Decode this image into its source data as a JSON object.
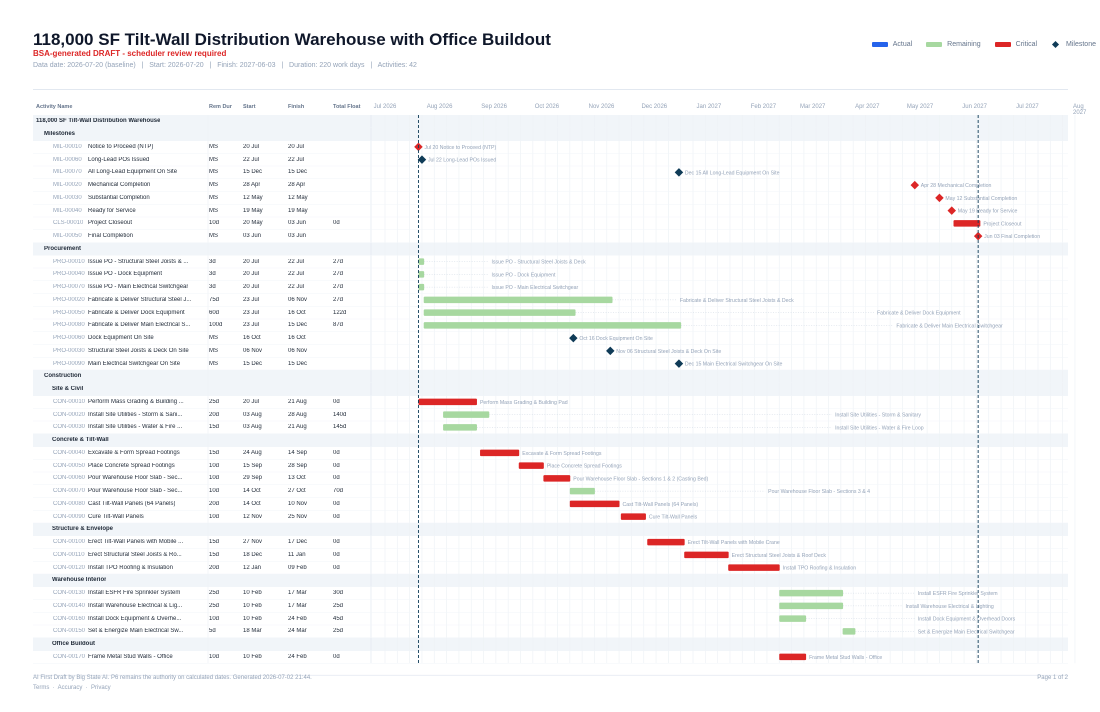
{
  "header": {
    "title": "118,000 SF Tilt-Wall Distribution Warehouse with Office Buildout",
    "subtitle": "BSA-generated DRAFT - scheduler review required",
    "meta": "Data date: 2026-07-20 (baseline)   |   Start: 2026-07-20   |   Finish: 2027-06-03   |   Duration: 220 work days   |   Activities: 42"
  },
  "legend": [
    {
      "label": "Actual",
      "color": "#2563eb",
      "kind": "bar"
    },
    {
      "label": "Remaining",
      "color": "#a7d8a0",
      "kind": "bar"
    },
    {
      "label": "Critical",
      "color": "#dc2626",
      "kind": "bar"
    },
    {
      "label": "Milestone",
      "color": "#0f3b57",
      "kind": "diamond"
    }
  ],
  "columns": {
    "name": "Activity Name",
    "rem": "Rem Dur",
    "start": "Start",
    "finish": "Finish",
    "float": "Total Float"
  },
  "chart_data": {
    "type": "gantt",
    "x_axis": {
      "range": [
        "2026-07-01",
        "2027-08-01"
      ],
      "months": [
        "Jul 2026",
        "Aug 2026",
        "Sep 2026",
        "Oct 2026",
        "Nov 2026",
        "Dec 2026",
        "Jan 2027",
        "Feb 2027",
        "Mar 2027",
        "Apr 2027",
        "May 2027",
        "Jun 2027",
        "Jul 2027",
        "Aug 2027"
      ]
    },
    "data_date": "2026-07-20",
    "finish_date": "2027-06-03",
    "rows": [
      {
        "kind": "group",
        "level": 0,
        "name": "118,000 SF Tilt-Wall Distribution Warehouse"
      },
      {
        "kind": "group",
        "level": 1,
        "name": "Milestones"
      },
      {
        "kind": "act",
        "id": "MIL-00010",
        "name": "Notice to Proceed (NTP)",
        "rem": "MS",
        "start": "20 Jul",
        "finish": "20 Jul",
        "float": "",
        "ms": true,
        "crit": true,
        "s": "2026-07-20",
        "f": "2026-07-20",
        "label": "Jul 20  Notice to Proceed (NTP)"
      },
      {
        "kind": "act",
        "id": "MIL-00060",
        "name": "Long-Lead POs Issued",
        "rem": "MS",
        "start": "22 Jul",
        "finish": "22 Jul",
        "float": "",
        "ms": true,
        "crit": false,
        "s": "2026-07-22",
        "f": "2026-07-22",
        "label": "Jul 22  Long-Lead POs Issued"
      },
      {
        "kind": "act",
        "id": "MIL-00070",
        "name": "All Long-Lead Equipment On Site",
        "rem": "MS",
        "start": "15 Dec",
        "finish": "15 Dec",
        "float": "",
        "ms": true,
        "crit": false,
        "s": "2026-12-15",
        "f": "2026-12-15",
        "label": "Dec 15  All Long-Lead Equipment On Site"
      },
      {
        "kind": "act",
        "id": "MIL-00020",
        "name": "Mechanical Completion",
        "rem": "MS",
        "start": "28 Apr",
        "finish": "28 Apr",
        "float": "",
        "ms": true,
        "crit": true,
        "s": "2027-04-28",
        "f": "2027-04-28",
        "label": "Apr 28  Mechanical Completion"
      },
      {
        "kind": "act",
        "id": "MIL-00030",
        "name": "Substantial Completion",
        "rem": "MS",
        "start": "12 May",
        "finish": "12 May",
        "float": "",
        "ms": true,
        "crit": true,
        "s": "2027-05-12",
        "f": "2027-05-12",
        "label": "May 12  Substantial Completion"
      },
      {
        "kind": "act",
        "id": "MIL-00040",
        "name": "Ready for Service",
        "rem": "MS",
        "start": "19 May",
        "finish": "19 May",
        "float": "",
        "ms": true,
        "crit": true,
        "s": "2027-05-19",
        "f": "2027-05-19",
        "label": "May 19  Ready for Service"
      },
      {
        "kind": "act",
        "id": "CLS-00010",
        "name": "Project Closeout",
        "rem": "10d",
        "start": "20 May",
        "finish": "03 Jun",
        "float": "0d",
        "ms": false,
        "crit": true,
        "s": "2027-05-20",
        "f": "2027-06-03",
        "label": "Project Closeout"
      },
      {
        "kind": "act",
        "id": "MIL-00050",
        "name": "Final Completion",
        "rem": "MS",
        "start": "03 Jun",
        "finish": "03 Jun",
        "float": "",
        "ms": true,
        "crit": true,
        "s": "2027-06-03",
        "f": "2027-06-03",
        "label": "Jun 03  Final Completion"
      },
      {
        "kind": "group",
        "level": 1,
        "name": "Procurement"
      },
      {
        "kind": "act",
        "id": "PRO-00010",
        "name": "Issue PO - Structural Steel Joists & ...",
        "rem": "3d",
        "start": "20 Jul",
        "finish": "22 Jul",
        "float": "27d",
        "ms": false,
        "crit": false,
        "s": "2026-07-20",
        "f": "2026-07-22",
        "label": "Issue PO - Structural Steel Joists & Deck"
      },
      {
        "kind": "act",
        "id": "PRO-00040",
        "name": "Issue PO - Dock Equipment",
        "rem": "3d",
        "start": "20 Jul",
        "finish": "22 Jul",
        "float": "27d",
        "ms": false,
        "crit": false,
        "s": "2026-07-20",
        "f": "2026-07-22",
        "label": "Issue PO - Dock Equipment"
      },
      {
        "kind": "act",
        "id": "PRO-00070",
        "name": "Issue PO - Main Electrical Switchgear",
        "rem": "3d",
        "start": "20 Jul",
        "finish": "22 Jul",
        "float": "27d",
        "ms": false,
        "crit": false,
        "s": "2026-07-20",
        "f": "2026-07-22",
        "label": "Issue PO - Main Electrical Switchgear"
      },
      {
        "kind": "act",
        "id": "PRO-00020",
        "name": "Fabricate & Deliver Structural Steel J...",
        "rem": "75d",
        "start": "23 Jul",
        "finish": "06 Nov",
        "float": "27d",
        "ms": false,
        "crit": false,
        "s": "2026-07-23",
        "f": "2026-11-06",
        "label": "Fabricate & Deliver Structural Steel Joists & Deck"
      },
      {
        "kind": "act",
        "id": "PRO-00050",
        "name": "Fabricate & Deliver Dock Equipment",
        "rem": "60d",
        "start": "23 Jul",
        "finish": "16 Oct",
        "float": "122d",
        "ms": false,
        "crit": false,
        "s": "2026-07-23",
        "f": "2026-10-16",
        "label": "Fabricate & Deliver Dock Equipment"
      },
      {
        "kind": "act",
        "id": "PRO-00080",
        "name": "Fabricate & Deliver Main Electrical S...",
        "rem": "100d",
        "start": "23 Jul",
        "finish": "15 Dec",
        "float": "87d",
        "ms": false,
        "crit": false,
        "s": "2026-07-23",
        "f": "2026-12-15",
        "label": "Fabricate & Deliver Main Electrical Switchgear"
      },
      {
        "kind": "act",
        "id": "PRO-00060",
        "name": "Dock Equipment On Site",
        "rem": "MS",
        "start": "16 Oct",
        "finish": "16 Oct",
        "float": "",
        "ms": true,
        "crit": false,
        "s": "2026-10-16",
        "f": "2026-10-16",
        "label": "Oct 16  Dock Equipment On Site"
      },
      {
        "kind": "act",
        "id": "PRO-00030",
        "name": "Structural Steel Joists & Deck On Site",
        "rem": "MS",
        "start": "06 Nov",
        "finish": "06 Nov",
        "float": "",
        "ms": true,
        "crit": false,
        "s": "2026-11-06",
        "f": "2026-11-06",
        "label": "Nov 06  Structural Steel Joists & Deck On Site"
      },
      {
        "kind": "act",
        "id": "PRO-00090",
        "name": "Main Electrical Switchgear On Site",
        "rem": "MS",
        "start": "15 Dec",
        "finish": "15 Dec",
        "float": "",
        "ms": true,
        "crit": false,
        "s": "2026-12-15",
        "f": "2026-12-15",
        "label": "Dec 15  Main Electrical Switchgear On Site"
      },
      {
        "kind": "group",
        "level": 1,
        "name": "Construction"
      },
      {
        "kind": "group",
        "level": 2,
        "name": "Site & Civil"
      },
      {
        "kind": "act",
        "id": "CON-00010",
        "name": "Perform Mass Grading & Building ...",
        "rem": "25d",
        "start": "20 Jul",
        "finish": "21 Aug",
        "float": "0d",
        "ms": false,
        "crit": true,
        "s": "2026-07-20",
        "f": "2026-08-21",
        "label": "Perform Mass Grading & Building Pad"
      },
      {
        "kind": "act",
        "id": "CON-00020",
        "name": "Install Site Utilities - Storm & Sani...",
        "rem": "20d",
        "start": "03 Aug",
        "finish": "28 Aug",
        "float": "140d",
        "ms": false,
        "crit": false,
        "s": "2026-08-03",
        "f": "2026-08-28",
        "label": "Install Site Utilities - Storm & Sanitary"
      },
      {
        "kind": "act",
        "id": "CON-00030",
        "name": "Install Site Utilities - Water & Fire ...",
        "rem": "15d",
        "start": "03 Aug",
        "finish": "21 Aug",
        "float": "145d",
        "ms": false,
        "crit": false,
        "s": "2026-08-03",
        "f": "2026-08-21",
        "label": "Install Site Utilities - Water & Fire Loop"
      },
      {
        "kind": "group",
        "level": 2,
        "name": "Concrete & Tilt-Wall"
      },
      {
        "kind": "act",
        "id": "CON-00040",
        "name": "Excavate & Form Spread Footings",
        "rem": "15d",
        "start": "24 Aug",
        "finish": "14 Sep",
        "float": "0d",
        "ms": false,
        "crit": true,
        "s": "2026-08-24",
        "f": "2026-09-14",
        "label": "Excavate & Form Spread Footings"
      },
      {
        "kind": "act",
        "id": "CON-00050",
        "name": "Place Concrete Spread Footings",
        "rem": "10d",
        "start": "15 Sep",
        "finish": "28 Sep",
        "float": "0d",
        "ms": false,
        "crit": true,
        "s": "2026-09-15",
        "f": "2026-09-28",
        "label": "Place Concrete Spread Footings"
      },
      {
        "kind": "act",
        "id": "CON-00060",
        "name": "Pour Warehouse Floor Slab - Sec...",
        "rem": "10d",
        "start": "29 Sep",
        "finish": "13 Oct",
        "float": "0d",
        "ms": false,
        "crit": true,
        "s": "2026-09-29",
        "f": "2026-10-13",
        "label": "Pour Warehouse Floor Slab - Sections 1 & 2 (Casting Bed)"
      },
      {
        "kind": "act",
        "id": "CON-00070",
        "name": "Pour Warehouse Floor Slab - Sec...",
        "rem": "10d",
        "start": "14 Oct",
        "finish": "27 Oct",
        "float": "70d",
        "ms": false,
        "crit": false,
        "s": "2026-10-14",
        "f": "2026-10-27",
        "label": "Pour Warehouse Floor Slab - Sections 3 & 4"
      },
      {
        "kind": "act",
        "id": "CON-00080",
        "name": "Cast Tilt-Wall Panels (64 Panels)",
        "rem": "20d",
        "start": "14 Oct",
        "finish": "10 Nov",
        "float": "0d",
        "ms": false,
        "crit": true,
        "s": "2026-10-14",
        "f": "2026-11-10",
        "label": "Cast Tilt-Wall Panels (64 Panels)"
      },
      {
        "kind": "act",
        "id": "CON-00090",
        "name": "Cure Tilt-Wall Panels",
        "rem": "10d",
        "start": "12 Nov",
        "finish": "25 Nov",
        "float": "0d",
        "ms": false,
        "crit": true,
        "s": "2026-11-12",
        "f": "2026-11-25",
        "label": "Cure Tilt-Wall Panels"
      },
      {
        "kind": "group",
        "level": 2,
        "name": "Structure & Envelope"
      },
      {
        "kind": "act",
        "id": "CON-00100",
        "name": "Erect Tilt-Wall Panels with Mobile ...",
        "rem": "15d",
        "start": "27 Nov",
        "finish": "17 Dec",
        "float": "0d",
        "ms": false,
        "crit": true,
        "s": "2026-11-27",
        "f": "2026-12-17",
        "label": "Erect Tilt-Wall Panels with Mobile Crane"
      },
      {
        "kind": "act",
        "id": "CON-00110",
        "name": "Erect Structural Steel Joists & Ro...",
        "rem": "15d",
        "start": "18 Dec",
        "finish": "11 Jan",
        "float": "0d",
        "ms": false,
        "crit": true,
        "s": "2026-12-18",
        "f": "2027-01-11",
        "label": "Erect Structural Steel Joists & Roof Deck"
      },
      {
        "kind": "act",
        "id": "CON-00120",
        "name": "Install TPO Roofing & Insulation",
        "rem": "20d",
        "start": "12 Jan",
        "finish": "09 Feb",
        "float": "0d",
        "ms": false,
        "crit": true,
        "s": "2027-01-12",
        "f": "2027-02-09",
        "label": "Install TPO Roofing & Insulation"
      },
      {
        "kind": "group",
        "level": 2,
        "name": "Warehouse Interior"
      },
      {
        "kind": "act",
        "id": "CON-00130",
        "name": "Install ESFR Fire Sprinkler System",
        "rem": "25d",
        "start": "10 Feb",
        "finish": "17 Mar",
        "float": "30d",
        "ms": false,
        "crit": false,
        "s": "2027-02-10",
        "f": "2027-03-17",
        "label": "Install ESFR Fire Sprinkler System"
      },
      {
        "kind": "act",
        "id": "CON-00140",
        "name": "Install Warehouse Electrical & Lig...",
        "rem": "25d",
        "start": "10 Feb",
        "finish": "17 Mar",
        "float": "25d",
        "ms": false,
        "crit": false,
        "s": "2027-02-10",
        "f": "2027-03-17",
        "label": "Install Warehouse Electrical & Lighting"
      },
      {
        "kind": "act",
        "id": "CON-00160",
        "name": "Install Dock Equipment & Overhe...",
        "rem": "10d",
        "start": "10 Feb",
        "finish": "24 Feb",
        "float": "45d",
        "ms": false,
        "crit": false,
        "s": "2027-02-10",
        "f": "2027-02-24",
        "label": "Install Dock Equipment & Overhead Doors"
      },
      {
        "kind": "act",
        "id": "CON-00150",
        "name": "Set & Energize Main Electrical Sw...",
        "rem": "5d",
        "start": "18 Mar",
        "finish": "24 Mar",
        "float": "25d",
        "ms": false,
        "crit": false,
        "s": "2027-03-18",
        "f": "2027-03-24",
        "label": "Set & Energize Main Electrical Switchgear"
      },
      {
        "kind": "group",
        "level": 2,
        "name": "Office Buildout"
      },
      {
        "kind": "act",
        "id": "CON-00170",
        "name": "Frame Metal Stud Walls - Office",
        "rem": "10d",
        "start": "10 Feb",
        "finish": "24 Feb",
        "float": "0d",
        "ms": false,
        "crit": true,
        "s": "2027-02-10",
        "f": "2027-02-24",
        "label": "Frame Metal Stud Walls - Office"
      }
    ]
  },
  "footer": {
    "disclaimer": "AI First Draft by Big State AI. P6 remains the authority on calculated dates. Generated 2026-07-02 21:44.",
    "links": "Terms  ·  Accuracy  ·  Privacy",
    "page": "Page 1 of 2"
  }
}
